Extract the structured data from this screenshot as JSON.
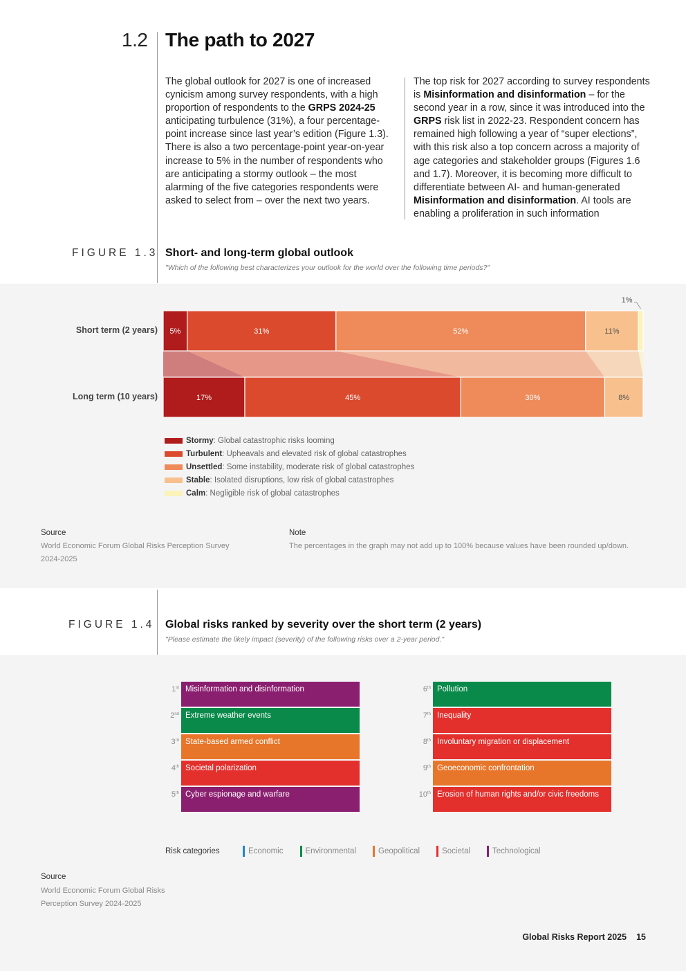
{
  "section": {
    "number": "1.2",
    "title": "The path to 2027",
    "left_column": [
      {
        "t": "The global outlook for 2027 is one of increased cynicism among survey respondents, with a high proportion of respondents to the "
      },
      {
        "b": "GRPS 2024-25"
      },
      {
        "t": " anticipating turbulence (31%), a four percentage-point increase since last year’s edition (Figure 1.3). There is also a two percentage-point year-on-year increase to 5% in the number of respondents who are anticipating a stormy outlook – the most alarming of the five categories respondents were asked to select from – over the next two years."
      }
    ],
    "right_column": [
      {
        "t": "The top risk for 2027 according to survey respondents is "
      },
      {
        "b": "Misinformation and disinformation"
      },
      {
        "t": " – for the second year in a row, since it was introduced into the "
      },
      {
        "b": "GRPS"
      },
      {
        "t": " risk list in 2022-23. Respondent concern has remained high following a year of “super elections”, with this risk also a top concern across a majority of age categories and stakeholder groups (Figures 1.6 and 1.7). Moreover, it is becoming more difficult to differentiate between AI- and human-generated "
      },
      {
        "b": "Misinformation and disinformation"
      },
      {
        "t": ". AI tools are enabling a proliferation in such information"
      }
    ]
  },
  "figure13": {
    "label": "FIGURE 1.3",
    "title": "Short- and long-term global outlook",
    "subtitle": "\"Which of the following best characterizes your outlook for the world over the following time periods?\"",
    "legend": [
      {
        "name": "Stormy",
        "desc": ": Global catastrophic risks looming",
        "color": "#b01c1c"
      },
      {
        "name": "Turbulent",
        "desc": ": Upheavals and elevated risk of global catastrophes",
        "color": "#dc4a2e"
      },
      {
        "name": "Unsettled",
        "desc": ": Some instability, moderate risk of global catastrophes",
        "color": "#ef8a5a"
      },
      {
        "name": "Stable",
        "desc": ": Isolated disruptions, low risk of global catastrophes",
        "color": "#f7c08d"
      },
      {
        "name": "Calm",
        "desc": ": Negligible risk of global catastrophes",
        "color": "#fbf3b8"
      }
    ],
    "source_heading": "Source",
    "source_text": "World Economic Forum Global Risks Perception Survey 2024-2025",
    "note_heading": "Note",
    "note_text": "The percentages in the graph may not add up to 100% because values have been rounded up/down."
  },
  "chart_data": {
    "type": "bar",
    "stacked": true,
    "orientation": "horizontal",
    "categories": [
      "Short term (2 years)",
      "Long term (10 years)"
    ],
    "series": [
      {
        "name": "Stormy",
        "values": [
          5,
          17
        ],
        "color": "#b01c1c"
      },
      {
        "name": "Turbulent",
        "values": [
          31,
          45
        ],
        "color": "#dc4a2e"
      },
      {
        "name": "Unsettled",
        "values": [
          52,
          30
        ],
        "color": "#ef8a5a"
      },
      {
        "name": "Stable",
        "values": [
          11,
          8
        ],
        "color": "#f7c08d"
      },
      {
        "name": "Calm",
        "values": [
          1,
          0
        ],
        "color": "#fbf3b8"
      }
    ],
    "data_labels": [
      [
        "5%",
        "31%",
        "52%",
        "11%",
        "1%"
      ],
      [
        "17%",
        "45%",
        "30%",
        "8%",
        ""
      ]
    ],
    "xlim": [
      0,
      100
    ],
    "legend_position": "bottom-left"
  },
  "figure14": {
    "label": "FIGURE 1.4",
    "title": "Global risks ranked by severity over the short term (2 years)",
    "subtitle": "\"Please estimate the likely impact (severity) of the following risks over a 2-year period.\"",
    "left": [
      {
        "rank": "1",
        "sup": "st",
        "label": "Misinformation and disinformation",
        "color": "#8b1f6f"
      },
      {
        "rank": "2",
        "sup": "nd",
        "label": "Extreme weather events",
        "color": "#0a8a4a"
      },
      {
        "rank": "3",
        "sup": "rd",
        "label": "State-based armed conflict",
        "color": "#e8762a"
      },
      {
        "rank": "4",
        "sup": "th",
        "label": "Societal polarization",
        "color": "#e3302d"
      },
      {
        "rank": "5",
        "sup": "th",
        "label": "Cyber espionage and warfare",
        "color": "#8b1f6f"
      }
    ],
    "right": [
      {
        "rank": "6",
        "sup": "th",
        "label": "Pollution",
        "color": "#0a8a4a"
      },
      {
        "rank": "7",
        "sup": "th",
        "label": "Inequality",
        "color": "#e3302d"
      },
      {
        "rank": "8",
        "sup": "th",
        "label": "Involuntary migration or displacement",
        "color": "#e3302d"
      },
      {
        "rank": "9",
        "sup": "th",
        "label": "Geoeconomic confrontation",
        "color": "#e8762a"
      },
      {
        "rank": "10",
        "sup": "th",
        "label": "Erosion of human rights and/or civic freedoms",
        "color": "#e3302d"
      }
    ],
    "categories_title": "Risk categories",
    "categories": [
      {
        "name": "Economic",
        "color": "#1f86c8"
      },
      {
        "name": "Environmental",
        "color": "#0a8a4a"
      },
      {
        "name": "Geopolitical",
        "color": "#e8762a"
      },
      {
        "name": "Societal",
        "color": "#e3302d"
      },
      {
        "name": "Technological",
        "color": "#8b1f6f"
      }
    ],
    "source_heading": "Source",
    "source_text": "World Economic Forum Global Risks Perception Survey 2024-2025"
  },
  "footer": {
    "report": "Global Risks Report 2025",
    "page": "15"
  }
}
